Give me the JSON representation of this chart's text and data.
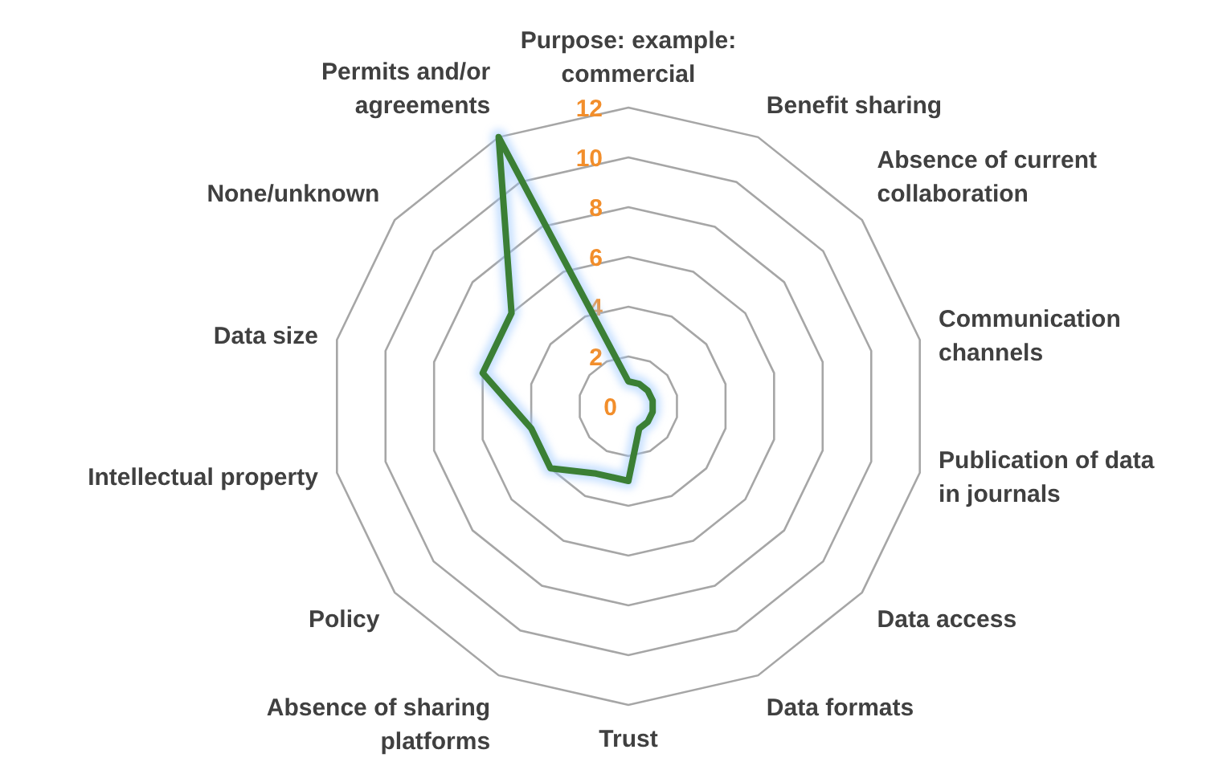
{
  "chart_data": {
    "type": "radar",
    "categories": [
      "Purpose: example: commercial",
      "Benefit sharing",
      "Absence of current collaboration",
      "Communication channels",
      "Publication of data in journals",
      "Data access",
      "Data formats",
      "Trust",
      "Absence of sharing platforms",
      "Policy",
      "Intellectual property",
      "Data size",
      "None/unknown",
      "Permits and/or agreements"
    ],
    "series": [
      {
        "color": "#3b7f35",
        "values": [
          1,
          1,
          1,
          1,
          1,
          1,
          1,
          3,
          3,
          4,
          4,
          6,
          6,
          12
        ]
      }
    ],
    "ylim": [
      0,
      12
    ],
    "yticks": [
      0,
      2,
      4,
      6,
      8,
      10,
      12
    ],
    "grid": true,
    "marker": "none",
    "line_style": "solid"
  }
}
